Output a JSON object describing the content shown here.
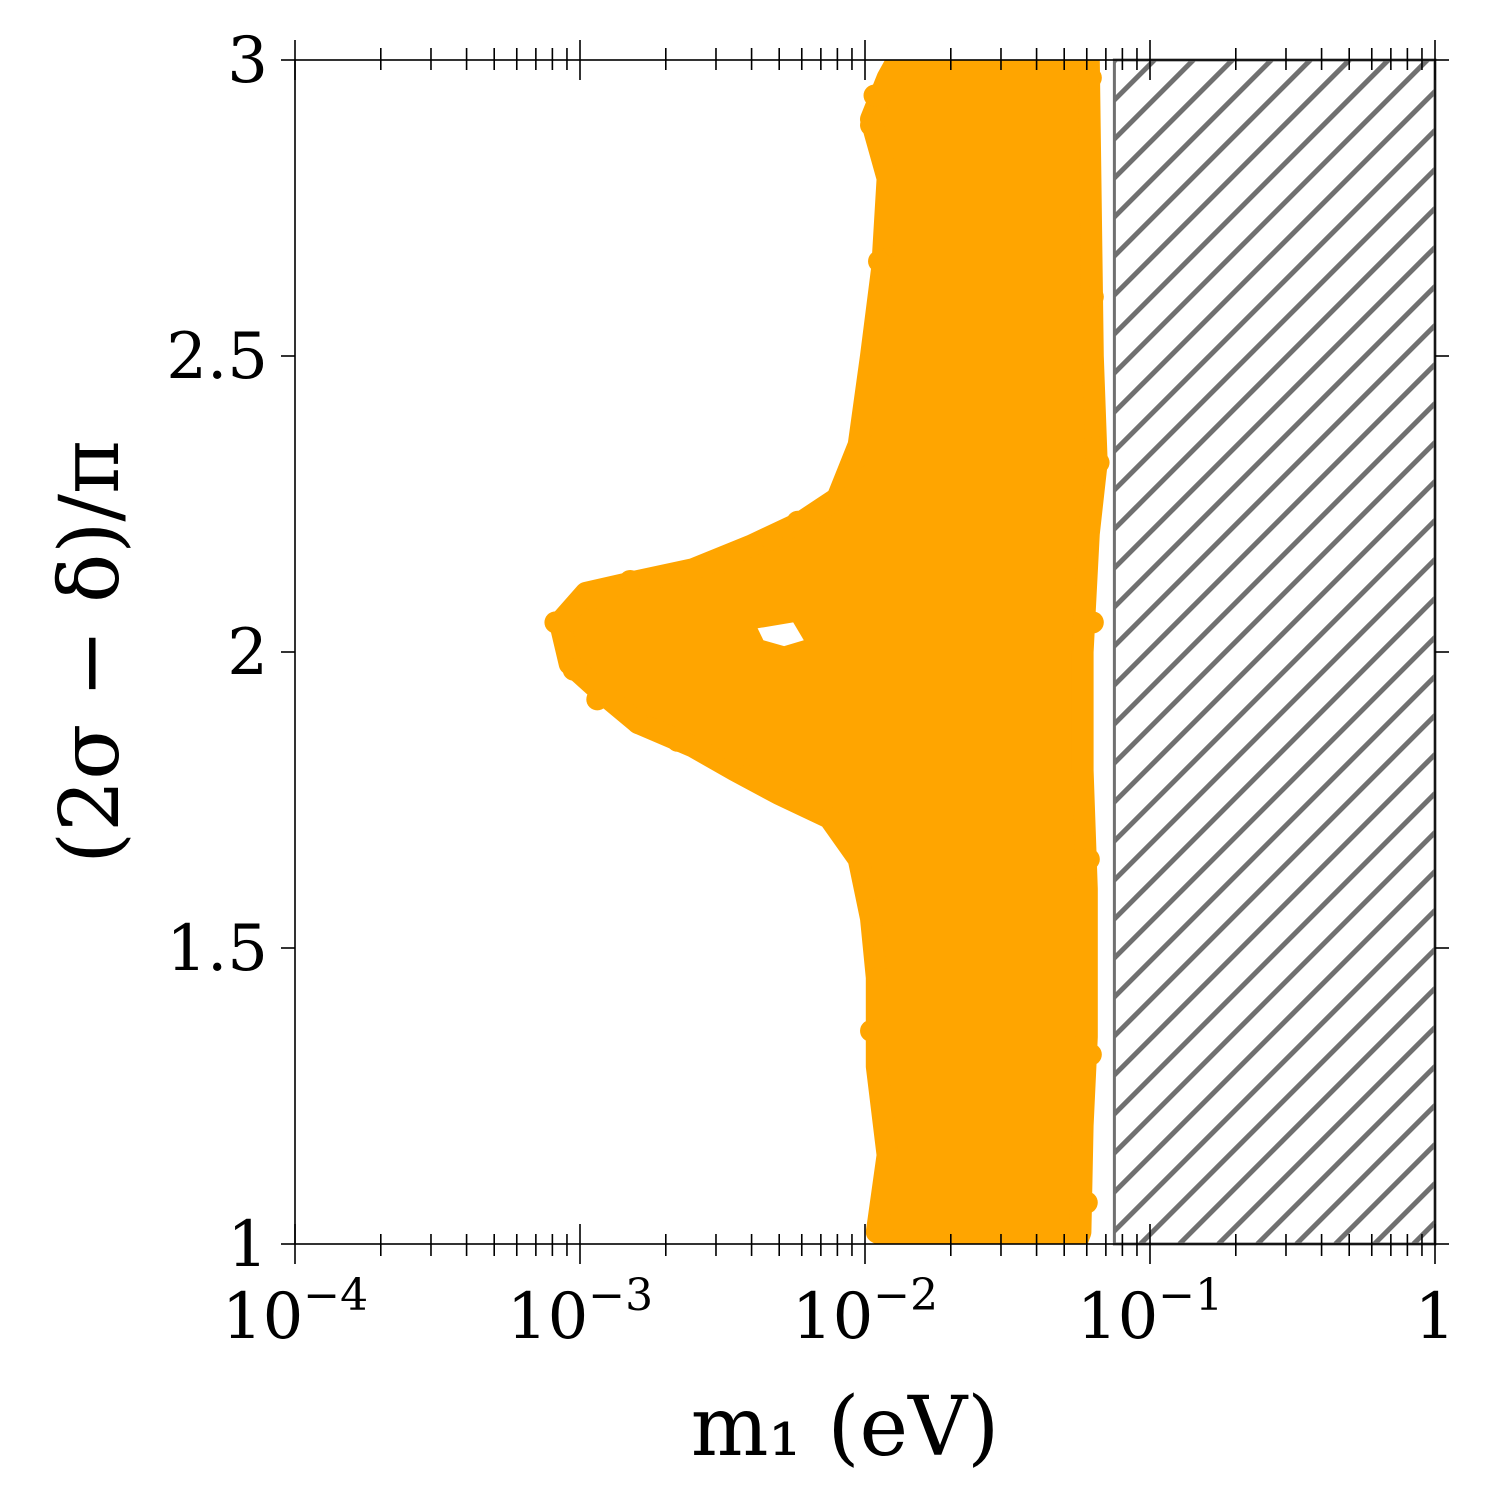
{
  "chart_data": {
    "type": "scatter",
    "title": "",
    "xlabel": "m₁ (eV)",
    "ylabel": "(2σ − δ)/π",
    "xscale": "log",
    "xlim": [
      0.0001,
      1
    ],
    "ylim": [
      1,
      3
    ],
    "grid": false,
    "legend": "none",
    "x_ticks": [
      {
        "value": 0.0001,
        "base": "10",
        "exp": "−4"
      },
      {
        "value": 0.001,
        "base": "10",
        "exp": "−3"
      },
      {
        "value": 0.01,
        "base": "10",
        "exp": "−2"
      },
      {
        "value": 0.1,
        "base": "10",
        "exp": "−1"
      },
      {
        "value": 1,
        "base": "1",
        "exp": ""
      }
    ],
    "y_ticks": [
      {
        "value": 1,
        "label": "1"
      },
      {
        "value": 1.5,
        "label": "1.5"
      },
      {
        "value": 2,
        "label": "2"
      },
      {
        "value": 2.5,
        "label": "2.5"
      },
      {
        "value": 3,
        "label": "3"
      }
    ],
    "series": [
      {
        "color": "#FFA500",
        "region_boundary": [
          [
            0.013,
            3.0
          ],
          [
            0.061,
            3.0
          ],
          [
            0.062,
            2.75
          ],
          [
            0.063,
            2.5
          ],
          [
            0.065,
            2.32
          ],
          [
            0.061,
            2.2
          ],
          [
            0.058,
            2.0
          ],
          [
            0.058,
            1.8
          ],
          [
            0.06,
            1.6
          ],
          [
            0.06,
            1.35
          ],
          [
            0.058,
            1.2
          ],
          [
            0.057,
            1.02
          ],
          [
            0.055,
            1.0
          ],
          [
            0.013,
            1.0
          ],
          [
            0.011,
            1.02
          ],
          [
            0.012,
            1.15
          ],
          [
            0.011,
            1.3
          ],
          [
            0.011,
            1.45
          ],
          [
            0.0105,
            1.55
          ],
          [
            0.0095,
            1.65
          ],
          [
            0.0075,
            1.72
          ],
          [
            0.005,
            1.76
          ],
          [
            0.0035,
            1.8
          ],
          [
            0.0025,
            1.84
          ],
          [
            0.0016,
            1.88
          ],
          [
            0.0012,
            1.93
          ],
          [
            0.00092,
            1.98
          ],
          [
            0.00085,
            2.05
          ],
          [
            0.00105,
            2.1
          ],
          [
            0.0016,
            2.12
          ],
          [
            0.0025,
            2.14
          ],
          [
            0.004,
            2.18
          ],
          [
            0.006,
            2.22
          ],
          [
            0.008,
            2.26
          ],
          [
            0.0095,
            2.35
          ],
          [
            0.0105,
            2.5
          ],
          [
            0.0115,
            2.65
          ],
          [
            0.012,
            2.8
          ],
          [
            0.0105,
            2.9
          ],
          [
            0.012,
            2.97
          ]
        ],
        "hole": [
          [
            0.0042,
            2.04
          ],
          [
            0.0056,
            2.05
          ],
          [
            0.0061,
            2.02
          ],
          [
            0.0052,
            2.01
          ],
          [
            0.0044,
            2.02
          ]
        ],
        "edge_points": [
          [
            0.0105,
            2.89
          ],
          [
            0.0108,
            2.94
          ],
          [
            0.0118,
            2.7
          ],
          [
            0.0112,
            2.66
          ],
          [
            0.0106,
            2.45
          ],
          [
            0.0095,
            2.33
          ],
          [
            0.0082,
            2.26
          ],
          [
            0.0065,
            2.23
          ],
          [
            0.0058,
            2.22
          ],
          [
            0.0047,
            2.19
          ],
          [
            0.0033,
            2.15
          ],
          [
            0.0022,
            2.13
          ],
          [
            0.0015,
            2.12
          ],
          [
            0.0011,
            2.09
          ],
          [
            0.00082,
            2.05
          ],
          [
            0.00095,
            1.97
          ],
          [
            0.00115,
            1.92
          ],
          [
            0.0016,
            1.88
          ],
          [
            0.0022,
            1.85
          ],
          [
            0.0035,
            1.82
          ],
          [
            0.005,
            1.78
          ],
          [
            0.0068,
            1.75
          ],
          [
            0.0082,
            1.71
          ],
          [
            0.0095,
            1.66
          ],
          [
            0.0105,
            1.6
          ],
          [
            0.0108,
            1.56
          ],
          [
            0.011,
            1.52
          ],
          [
            0.0112,
            1.45
          ],
          [
            0.0105,
            1.36
          ],
          [
            0.012,
            1.25
          ],
          [
            0.012,
            1.15
          ],
          [
            0.0115,
            1.03
          ],
          [
            0.062,
            2.97
          ],
          [
            0.063,
            2.6
          ],
          [
            0.064,
            2.38
          ],
          [
            0.066,
            2.32
          ],
          [
            0.063,
            2.05
          ],
          [
            0.061,
            1.65
          ],
          [
            0.062,
            1.32
          ],
          [
            0.06,
            1.07
          ]
        ]
      }
    ],
    "excluded_region": {
      "x_from": 0.075,
      "x_to": 1,
      "style": "hatched",
      "color": "#707070"
    }
  }
}
